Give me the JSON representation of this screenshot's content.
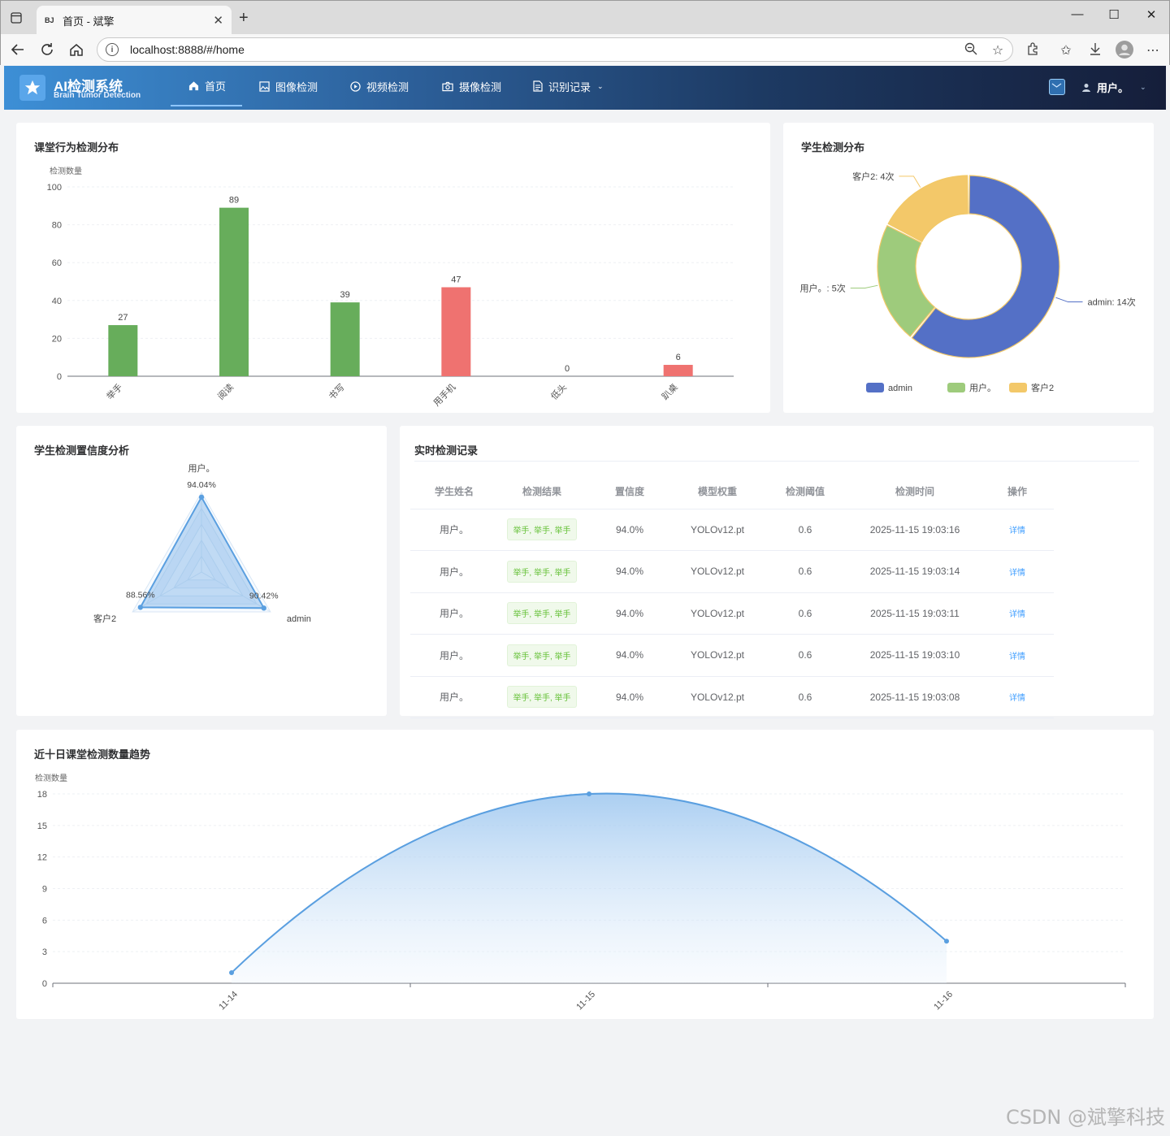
{
  "browser": {
    "tab_favicon": "BJ",
    "tab_title": "首页 - 斌擎",
    "url": "localhost:8888/#/home"
  },
  "header": {
    "app_title": "AI检测系统",
    "app_subtitle": "Brain Tumor Detection",
    "nav": [
      {
        "label": "首页",
        "icon": "home-icon"
      },
      {
        "label": "图像检测",
        "icon": "image-icon"
      },
      {
        "label": "视频检测",
        "icon": "play-circle-icon"
      },
      {
        "label": "摄像检测",
        "icon": "camera-icon"
      },
      {
        "label": "识别记录",
        "icon": "document-icon"
      }
    ],
    "user_label": "用户。"
  },
  "colors": {
    "green": "#67ad5b",
    "red": "#ef7270",
    "blue": "#5470c6",
    "light_green": "#9ecb7c",
    "yellow": "#f3c869",
    "line": "#5a9fe0"
  },
  "bar_card": {
    "title": "课堂行为检测分布",
    "chart_data": {
      "type": "bar",
      "ylabel": "检测数量",
      "ylim": [
        0,
        100
      ],
      "yticks": [
        0,
        20,
        40,
        60,
        80,
        100
      ],
      "categories": [
        "举手",
        "阅读",
        "书写",
        "用手机",
        "低头",
        "趴桌"
      ],
      "values": [
        27,
        89,
        39,
        47,
        0,
        6
      ],
      "bar_colors": [
        "#67ad5b",
        "#67ad5b",
        "#67ad5b",
        "#ef7270",
        "#ef7270",
        "#ef7270"
      ]
    }
  },
  "pie_card": {
    "title": "学生检测分布",
    "chart_data": {
      "type": "pie",
      "slices": [
        {
          "name": "admin",
          "value": 14,
          "label": "admin: 14次",
          "color": "#5470c6"
        },
        {
          "name": "用户。",
          "value": 5,
          "label": "用户。: 5次",
          "color": "#9ecb7c"
        },
        {
          "name": "客户2",
          "value": 4,
          "label": "客户2: 4次",
          "color": "#f3c869"
        }
      ],
      "legend": [
        "admin",
        "用户。",
        "客户2"
      ],
      "legend_position": "bottom"
    }
  },
  "radar_card": {
    "title": "学生检测置信度分析",
    "chart_data": {
      "type": "radar",
      "max": 100,
      "axes": [
        "用户。",
        "admin",
        "客户2"
      ],
      "values": [
        94.04,
        90.42,
        88.56
      ],
      "value_labels": [
        "94.04%",
        "90.42%",
        "88.56%"
      ]
    }
  },
  "table_card": {
    "title": "实时检测记录",
    "headers": [
      "学生姓名",
      "检测结果",
      "置信度",
      "模型权重",
      "检测阈值",
      "检测时间",
      "操作"
    ],
    "rows": [
      {
        "name": "用户。",
        "result": "举手, 举手, 举手",
        "conf": "94.0%",
        "model": "YOLOv12.pt",
        "thr": "0.6",
        "time": "2025-11-15 19:03:16",
        "action": "详情"
      },
      {
        "name": "用户。",
        "result": "举手, 举手, 举手",
        "conf": "94.0%",
        "model": "YOLOv12.pt",
        "thr": "0.6",
        "time": "2025-11-15 19:03:14",
        "action": "详情"
      },
      {
        "name": "用户。",
        "result": "举手, 举手, 举手",
        "conf": "94.0%",
        "model": "YOLOv12.pt",
        "thr": "0.6",
        "time": "2025-11-15 19:03:11",
        "action": "详情"
      },
      {
        "name": "用户。",
        "result": "举手, 举手, 举手",
        "conf": "94.0%",
        "model": "YOLOv12.pt",
        "thr": "0.6",
        "time": "2025-11-15 19:03:10",
        "action": "详情"
      },
      {
        "name": "用户。",
        "result": "举手, 举手, 举手",
        "conf": "94.0%",
        "model": "YOLOv12.pt",
        "thr": "0.6",
        "time": "2025-11-15 19:03:08",
        "action": "详情"
      }
    ]
  },
  "trend_card": {
    "title": "近十日课堂检测数量趋势",
    "chart_data": {
      "type": "area",
      "ylabel": "检测数量",
      "ylim": [
        0,
        18
      ],
      "yticks": [
        0,
        3,
        6,
        9,
        12,
        15,
        18
      ],
      "x": [
        "11-14",
        "11-15",
        "11-16"
      ],
      "values": [
        1,
        18,
        4
      ]
    }
  },
  "watermark": "CSDN @斌擎科技"
}
